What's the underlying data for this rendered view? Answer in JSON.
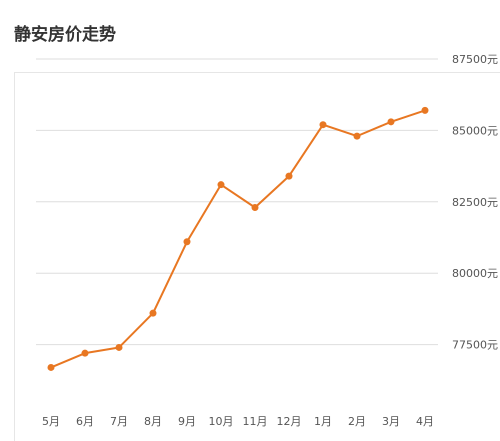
{
  "page": {
    "title": "静安房价走势"
  },
  "chart_data": {
    "type": "line",
    "categories": [
      "5月",
      "6月",
      "7月",
      "8月",
      "9月",
      "10月",
      "11月",
      "12月",
      "1月",
      "2月",
      "3月",
      "4月"
    ],
    "series": [
      {
        "values": [
          76700,
          77200,
          77400,
          78600,
          81100,
          83100,
          82300,
          83400,
          85200,
          84800,
          85300,
          85700
        ]
      }
    ],
    "y_ticks": [
      77500,
      80000,
      82500,
      85000,
      87500
    ],
    "y_tick_labels": [
      "77500元",
      "80000元",
      "82500元",
      "85000元",
      "87500元"
    ],
    "ylim": [
      75000,
      87500
    ],
    "grid": true,
    "y_axis_side": "right",
    "line_color": "#e87722",
    "title": "",
    "xlabel": "",
    "ylabel": ""
  }
}
